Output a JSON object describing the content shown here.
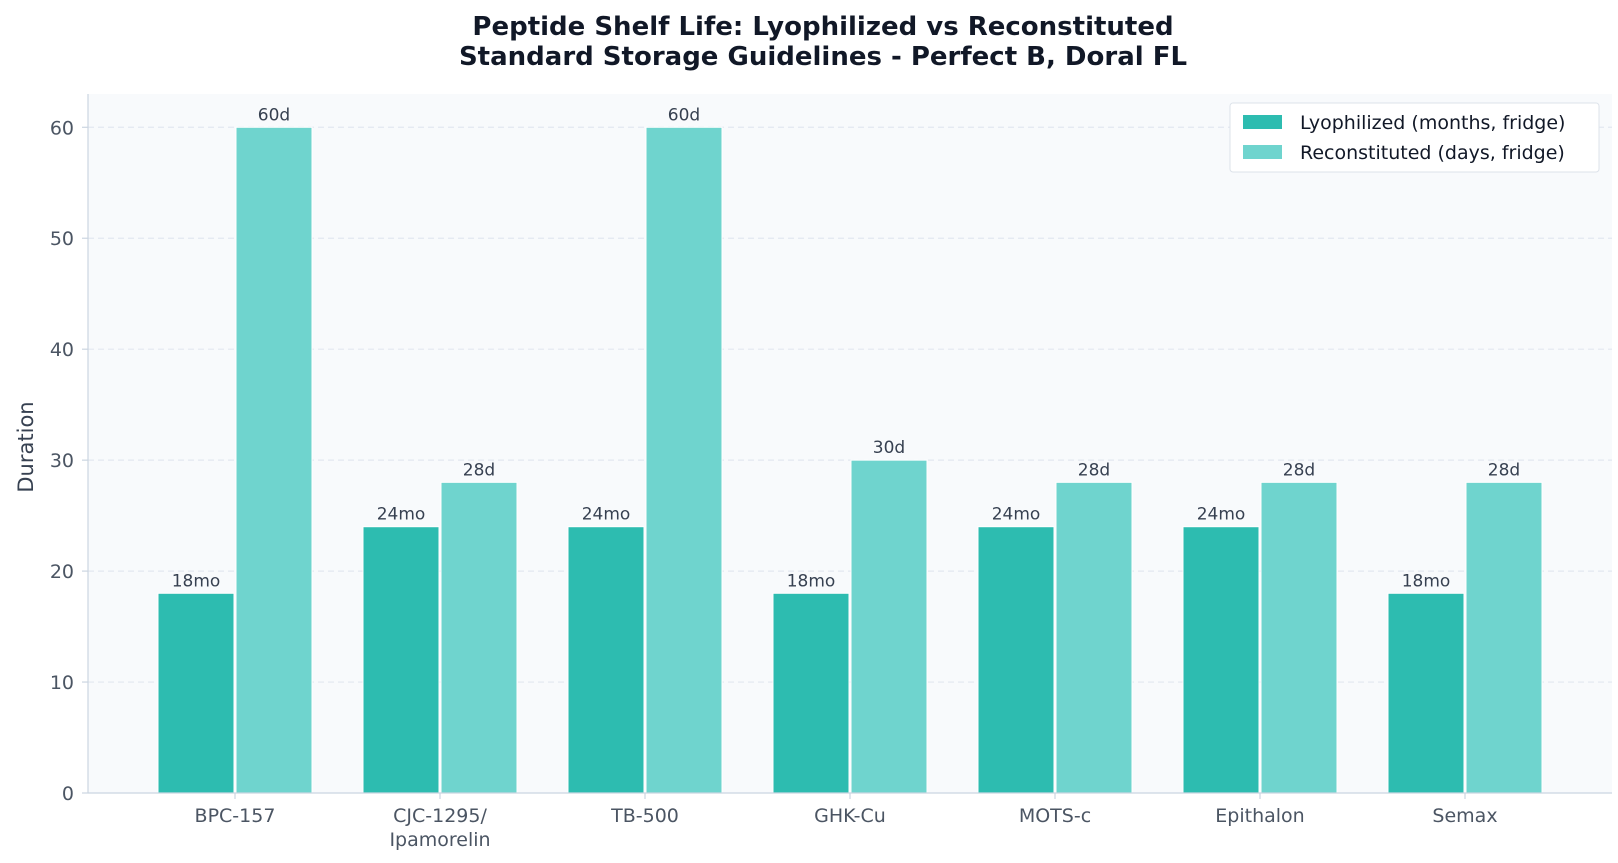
{
  "chart_data": {
    "type": "bar",
    "title": "Peptide Shelf Life: Lyophilized vs Reconstituted",
    "subtitle": "Standard Storage Guidelines - Perfect B, Doral FL",
    "xlabel": "",
    "ylabel": "Duration",
    "ylim": [
      0,
      63
    ],
    "yticks": [
      0,
      10,
      20,
      30,
      40,
      50,
      60
    ],
    "grid": "horizontal dashed",
    "legend_position": "top-right",
    "categories": [
      [
        "BPC-157"
      ],
      [
        "CJC-1295/",
        "Ipamorelin"
      ],
      [
        "TB-500"
      ],
      [
        "GHK-Cu"
      ],
      [
        "MOTS-c"
      ],
      [
        "Epithalon"
      ],
      [
        "Semax"
      ]
    ],
    "series": [
      {
        "name": "Lyophilized (months, fridge)",
        "color": "#2dbcb0",
        "values": [
          18,
          24,
          24,
          18,
          24,
          24,
          18
        ],
        "labels": [
          "18mo",
          "24mo",
          "24mo",
          "18mo",
          "24mo",
          "24mo",
          "18mo"
        ]
      },
      {
        "name": "Reconstituted (days, fridge)",
        "color": "#6fd4ce",
        "values": [
          60,
          28,
          60,
          30,
          28,
          28,
          28
        ],
        "labels": [
          "60d",
          "28d",
          "60d",
          "30d",
          "28d",
          "28d",
          "28d"
        ]
      }
    ]
  },
  "colors": {
    "plot_background": "#f8fafc",
    "grid": "#e2e8f0",
    "axis": "#cbd5e1"
  }
}
